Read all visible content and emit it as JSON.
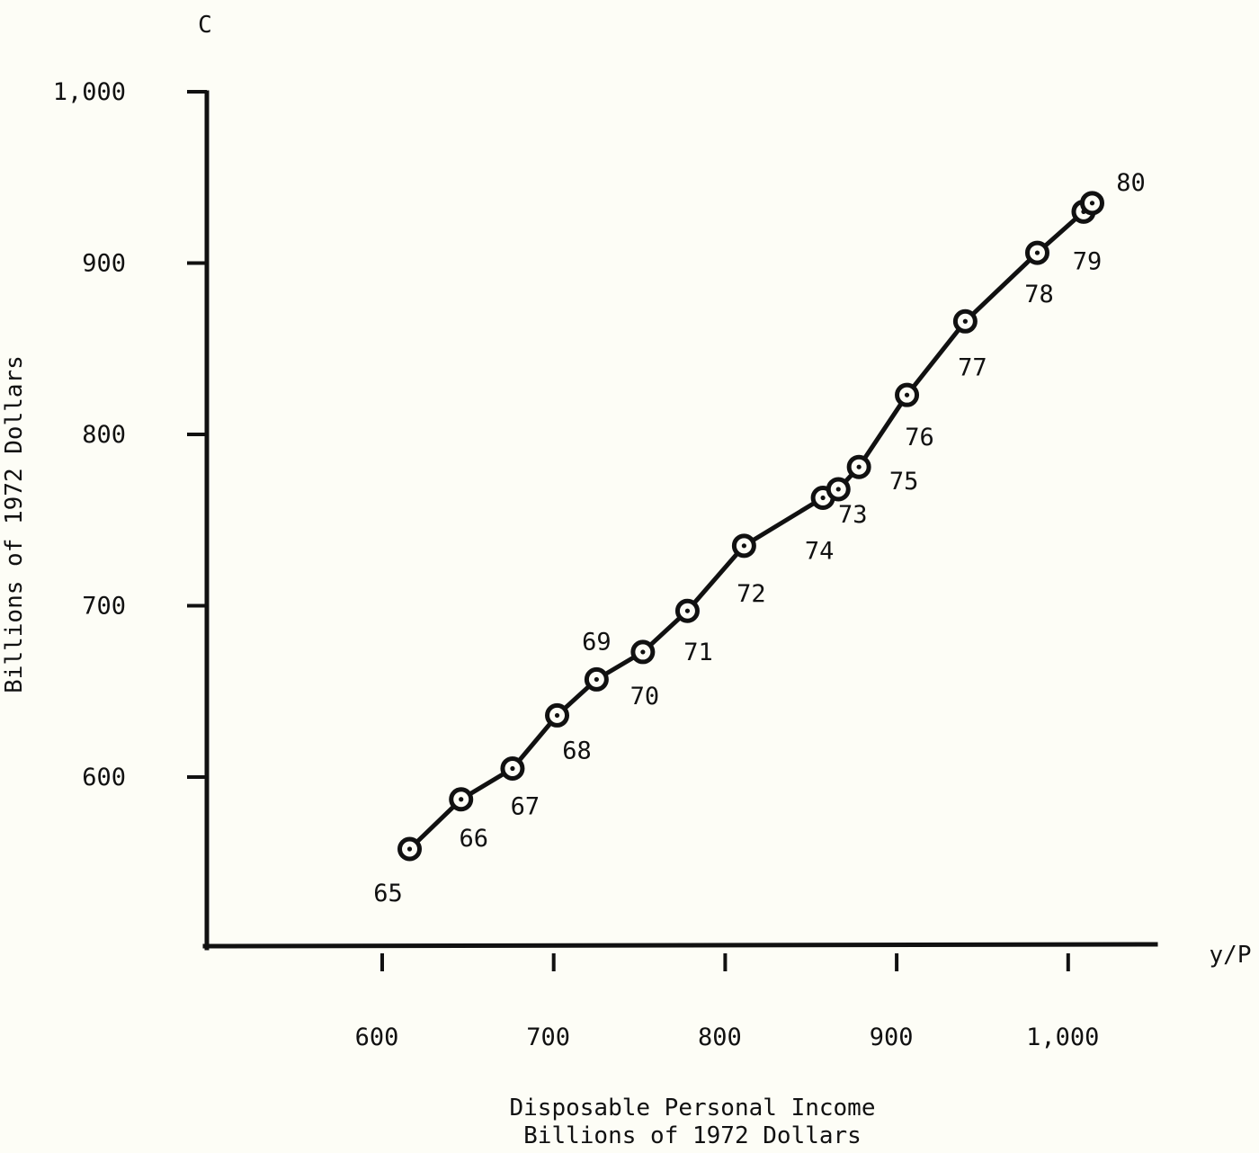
{
  "chart_data": {
    "type": "line",
    "title": "",
    "y_axis_letter": "C",
    "x_axis_letter": "y/P",
    "xlabel_line1": "Disposable Personal Income",
    "xlabel_line2": "Billions of 1972 Dollars",
    "ylabel": "Billions of 1972 Dollars",
    "xlim": [
      500,
      1050
    ],
    "ylim": [
      500,
      1000
    ],
    "x_ticks": [
      600,
      700,
      800,
      900,
      1000
    ],
    "x_tick_labels": [
      "600",
      "700",
      "800",
      "900",
      "1,000"
    ],
    "y_ticks": [
      600,
      700,
      800,
      900,
      1000
    ],
    "y_tick_labels": [
      "600",
      "700",
      "800",
      "900",
      "1,000"
    ],
    "grid": false,
    "legend": "none",
    "color": "#111111",
    "series": [
      {
        "points": [
          {
            "label": "65",
            "x": 616,
            "y": 558
          },
          {
            "label": "66",
            "x": 646,
            "y": 587
          },
          {
            "label": "67",
            "x": 676,
            "y": 605
          },
          {
            "label": "68",
            "x": 702,
            "y": 636
          },
          {
            "label": "69",
            "x": 725,
            "y": 657
          },
          {
            "label": "70",
            "x": 752,
            "y": 673
          },
          {
            "label": "71",
            "x": 778,
            "y": 697
          },
          {
            "label": "72",
            "x": 811,
            "y": 735
          },
          {
            "label": "74",
            "x": 857,
            "y": 763
          },
          {
            "label": "73",
            "x": 866,
            "y": 768
          },
          {
            "label": "75",
            "x": 878,
            "y": 781
          },
          {
            "label": "76",
            "x": 906,
            "y": 823
          },
          {
            "label": "77",
            "x": 940,
            "y": 866
          },
          {
            "label": "78",
            "x": 982,
            "y": 906
          },
          {
            "label": "79",
            "x": 1009,
            "y": 930
          },
          {
            "label": "80",
            "x": 1014,
            "y": 935
          }
        ]
      }
    ]
  }
}
